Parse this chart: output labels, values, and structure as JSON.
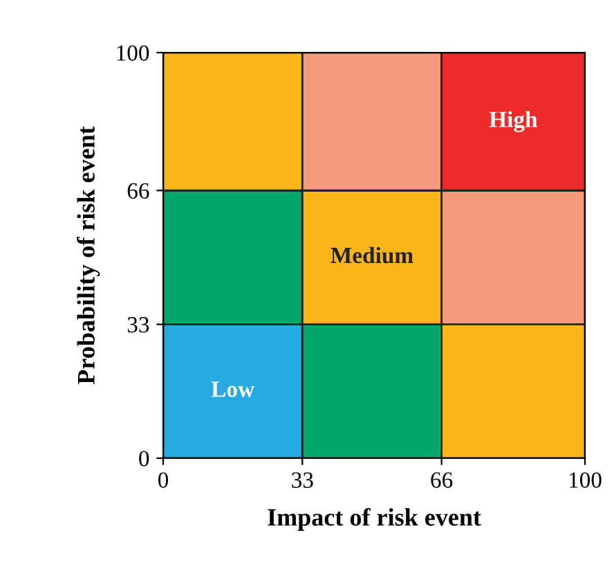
{
  "chart_data": {
    "type": "bar",
    "stacked": true,
    "xlabel": "Impact of risk event",
    "ylabel": "Probability of risk event",
    "xlim": [
      0,
      100
    ],
    "ylim": [
      0,
      100
    ],
    "xticks": [
      0,
      33,
      66,
      100
    ],
    "yticks": [
      0,
      33,
      66,
      100
    ],
    "x": [
      16.5,
      49.5,
      83
    ],
    "series": [
      {
        "colors": [
          "#27aae1",
          "#00a86b",
          "#fbb61a"
        ],
        "values": [
          33,
          33,
          33
        ],
        "value_labels": [
          "Low",
          null,
          null
        ]
      },
      {
        "colors": [
          "#00a86b",
          "#fbb61a",
          "#f59a7a"
        ],
        "values": [
          33,
          33,
          33
        ],
        "value_labels": [
          null,
          "Medium",
          null
        ]
      },
      {
        "colors": [
          "#fbb61a",
          "#f59a7a",
          "#ed2a2a"
        ],
        "values": [
          34,
          34,
          34
        ],
        "value_labels": [
          null,
          null,
          "High"
        ]
      }
    ]
  }
}
